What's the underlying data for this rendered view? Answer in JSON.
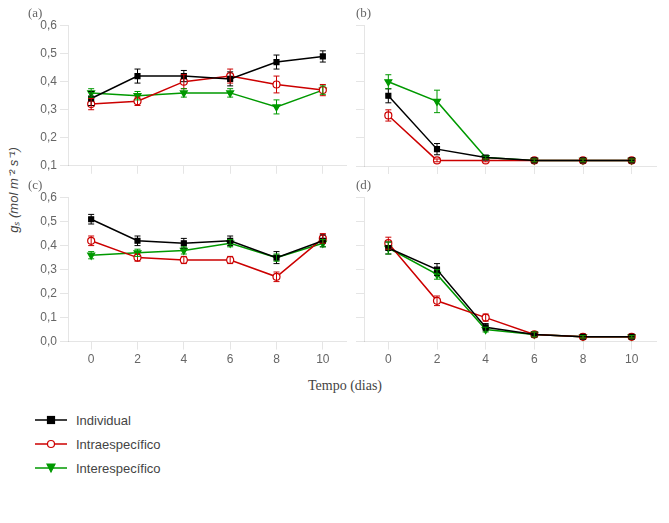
{
  "chart_data": [
    {
      "type": "line",
      "title": "(a)",
      "ylabel": "gₛ (mol m⁻² s⁻¹)",
      "legend": "lower left",
      "grid": false,
      "tick_labels": "y",
      "x": [
        0,
        2,
        4,
        6,
        8,
        10
      ],
      "xlim": [
        -1,
        11
      ],
      "xticks": [
        0,
        2,
        4,
        6,
        8,
        10
      ],
      "ylim": [
        0.1,
        0.6
      ],
      "yticks": [
        {
          "value": 0.1,
          "label": "0,1"
        },
        {
          "value": 0.2,
          "label": "0,2"
        },
        {
          "value": 0.3,
          "label": "0,3"
        },
        {
          "value": 0.4,
          "label": "0,4"
        },
        {
          "value": 0.5,
          "label": "0,5"
        },
        {
          "value": 0.6,
          "label": "0,6"
        }
      ],
      "series": [
        {
          "name": "Individual",
          "color": "#000000",
          "marker": "square",
          "values": [
            0.34,
            0.42,
            0.42,
            0.41,
            0.47,
            0.49
          ],
          "yerr": [
            0.025,
            0.025,
            0.02,
            0.025,
            0.025,
            0.02
          ]
        },
        {
          "name": "Intraespecífico",
          "color": "#cc0000",
          "marker": "open_circle",
          "values": [
            0.32,
            0.33,
            0.4,
            0.42,
            0.39,
            0.37
          ],
          "yerr": [
            0.02,
            0.015,
            0.025,
            0.025,
            0.03,
            0.02
          ]
        },
        {
          "name": "Interespecífico",
          "color": "#009900",
          "marker": "triangle_down",
          "values": [
            0.36,
            0.35,
            0.36,
            0.36,
            0.31,
            0.37
          ],
          "yerr": [
            0.015,
            0.015,
            0.015,
            0.015,
            0.025,
            0.015
          ]
        }
      ]
    },
    {
      "type": "line",
      "title": "(b)",
      "grid": false,
      "tick_labels": false,
      "x": [
        0,
        2,
        4,
        6,
        8,
        10
      ],
      "xlim": [
        -1,
        11
      ],
      "xticks": [
        0,
        2,
        4,
        6,
        8,
        10
      ],
      "ylim": [
        0.1,
        0.6
      ],
      "yticks": [
        0.1,
        0.2,
        0.3,
        0.4,
        0.5,
        0.6
      ],
      "series": [
        {
          "name": "Individual",
          "color": "#000000",
          "marker": "square",
          "values": [
            0.35,
            0.16,
            0.13,
            0.12,
            0.12,
            0.12
          ],
          "yerr": [
            0.025,
            0.02,
            0.005,
            0.005,
            0.005,
            0.005
          ]
        },
        {
          "name": "Intraespecífico",
          "color": "#cc0000",
          "marker": "open_circle",
          "values": [
            0.28,
            0.12,
            0.12,
            0.12,
            0.12,
            0.12
          ],
          "yerr": [
            0.02,
            0.005,
            0.005,
            0.005,
            0.005,
            0.005
          ]
        },
        {
          "name": "Interespecífico",
          "color": "#009900",
          "marker": "triangle_down",
          "values": [
            0.4,
            0.33,
            0.13,
            0.12,
            0.12,
            0.12
          ],
          "yerr": [
            0.025,
            0.04,
            0.005,
            0.005,
            0.005,
            0.005
          ]
        }
      ]
    },
    {
      "type": "line",
      "title": "(c)",
      "xlabel": "Tempo (dias)",
      "grid": false,
      "x": [
        0,
        2,
        4,
        6,
        8,
        10
      ],
      "xlim": [
        -1,
        11
      ],
      "xticks": [
        0,
        2,
        4,
        6,
        8,
        10
      ],
      "ylim": [
        0.0,
        0.6
      ],
      "yticks": [
        {
          "value": 0.0,
          "label": "0,0"
        },
        {
          "value": 0.1,
          "label": "0,1"
        },
        {
          "value": 0.2,
          "label": "0,2"
        },
        {
          "value": 0.3,
          "label": "0,3"
        },
        {
          "value": 0.4,
          "label": "0,4"
        },
        {
          "value": 0.5,
          "label": "0,5"
        },
        {
          "value": 0.6,
          "label": "0,6"
        }
      ],
      "series": [
        {
          "name": "Individual",
          "color": "#000000",
          "marker": "square",
          "values": [
            0.51,
            0.42,
            0.41,
            0.42,
            0.35,
            0.42
          ],
          "yerr": [
            0.02,
            0.02,
            0.02,
            0.02,
            0.025,
            0.025
          ]
        },
        {
          "name": "Intraespecífico",
          "color": "#cc0000",
          "marker": "open_circle",
          "values": [
            0.42,
            0.35,
            0.34,
            0.34,
            0.27,
            0.43
          ],
          "yerr": [
            0.02,
            0.015,
            0.015,
            0.015,
            0.02,
            0.02
          ]
        },
        {
          "name": "Interespecífico",
          "color": "#009900",
          "marker": "triangle_down",
          "values": [
            0.36,
            0.37,
            0.38,
            0.41,
            0.35,
            0.41
          ],
          "yerr": [
            0.015,
            0.015,
            0.015,
            0.015,
            0.015,
            0.015
          ]
        }
      ]
    },
    {
      "type": "line",
      "title": "(d)",
      "grid": false,
      "tick_labels": "x",
      "x": [
        0,
        2,
        4,
        6,
        8,
        10
      ],
      "xlim": [
        -1,
        11
      ],
      "xticks": [
        0,
        2,
        4,
        6,
        8,
        10
      ],
      "ylim": [
        0.0,
        0.6
      ],
      "yticks": [
        0.0,
        0.1,
        0.2,
        0.3,
        0.4,
        0.5,
        0.6
      ],
      "series": [
        {
          "name": "Individual",
          "color": "#000000",
          "marker": "square",
          "values": [
            0.39,
            0.3,
            0.06,
            0.03,
            0.02,
            0.02
          ],
          "yerr": [
            0.025,
            0.025,
            0.015,
            0.01,
            0.005,
            0.005
          ]
        },
        {
          "name": "Intraespecífico",
          "color": "#cc0000",
          "marker": "open_circle",
          "values": [
            0.41,
            0.17,
            0.1,
            0.03,
            0.02,
            0.02
          ],
          "yerr": [
            0.025,
            0.02,
            0.015,
            0.01,
            0.005,
            0.005
          ]
        },
        {
          "name": "Interespecífico",
          "color": "#009900",
          "marker": "triangle_down",
          "values": [
            0.39,
            0.28,
            0.05,
            0.03,
            0.02,
            0.02
          ],
          "yerr": [
            0.025,
            0.02,
            0.01,
            0.01,
            0.005,
            0.005
          ]
        }
      ]
    }
  ]
}
